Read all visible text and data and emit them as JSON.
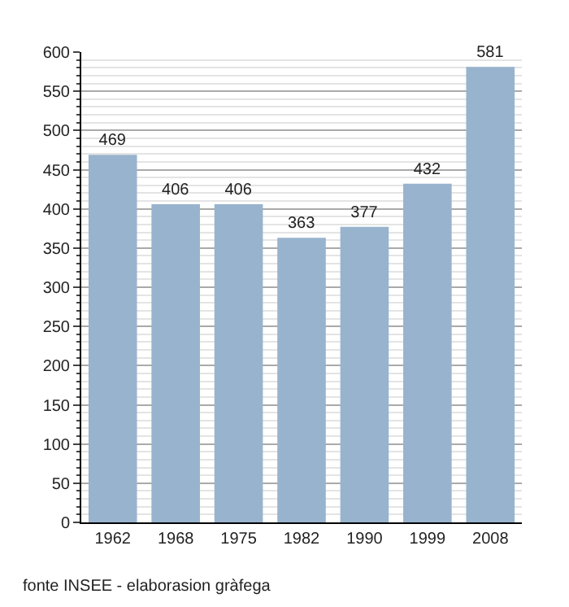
{
  "chart_data": {
    "type": "bar",
    "categories": [
      "1962",
      "1968",
      "1975",
      "1982",
      "1990",
      "1999",
      "2008"
    ],
    "values": [
      469,
      406,
      406,
      363,
      377,
      432,
      581
    ],
    "color": "#98b3cd",
    "data_labels": true,
    "ylim": [
      0,
      600
    ],
    "yticks": [
      0,
      50,
      100,
      150,
      200,
      250,
      300,
      350,
      400,
      450,
      500,
      550,
      600
    ],
    "grid": "y",
    "annotations": [
      "fonte INSEE - elaborasion gràfega"
    ]
  }
}
